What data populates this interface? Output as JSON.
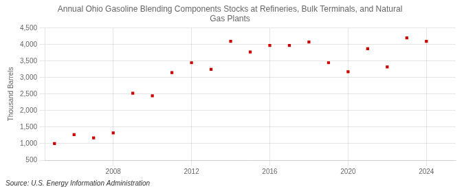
{
  "chart_data": {
    "type": "scatter",
    "title": "Annual Ohio Gasoline Blending Components Stocks at Refineries, Bulk Terminals, and Natural\nGas Plants",
    "ylabel": "Thousand Barrels",
    "annotation": "Source: U.S. Energy Information Administration",
    "x": [
      2005,
      2006,
      2007,
      2008,
      2009,
      2010,
      2011,
      2012,
      2013,
      2014,
      2015,
      2016,
      2017,
      2018,
      2019,
      2020,
      2021,
      2022,
      2023,
      2024
    ],
    "values": [
      1000,
      1275,
      1175,
      1325,
      2525,
      2450,
      3150,
      3450,
      3250,
      4100,
      3775,
      3975,
      3975,
      4075,
      3450,
      3175,
      3875,
      3325,
      4200,
      4100
    ],
    "color": "#cc0000",
    "marker": "square",
    "xlim": [
      2004.5,
      2025.5
    ],
    "xticks": [
      2008,
      2012,
      2016,
      2020,
      2024
    ],
    "ylim": [
      500,
      4500
    ],
    "yticks": [
      500,
      {
        "value": 1000,
        "label": "1,000"
      },
      {
        "value": 1500,
        "label": "1,500"
      },
      {
        "value": 2000,
        "label": "2,000"
      },
      {
        "value": 2500,
        "label": "2,500"
      },
      {
        "value": 3000,
        "label": "3,000"
      },
      {
        "value": 3500,
        "label": "3,500"
      },
      {
        "value": 4000,
        "label": "4,000"
      },
      {
        "value": 4500,
        "label": "4,500"
      }
    ],
    "grid": true
  }
}
